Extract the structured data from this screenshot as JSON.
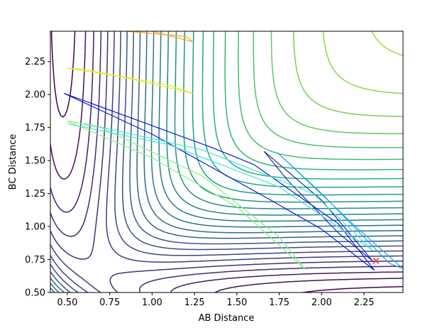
{
  "chart_data": {
    "type": "contour",
    "xlabel": "AB Distance",
    "ylabel": "BC Distance",
    "xlim": [
      0.4,
      2.48
    ],
    "ylim": [
      0.5,
      2.48
    ],
    "xticks": [
      "0.50",
      "0.75",
      "1.00",
      "1.25",
      "1.50",
      "1.75",
      "2.00",
      "2.25"
    ],
    "yticks": [
      "0.50",
      "0.75",
      "1.00",
      "1.25",
      "1.50",
      "1.75",
      "2.00",
      "2.25"
    ],
    "colormap": "viridis",
    "grid": false,
    "contour_levels": 30,
    "trajectories": [
      {
        "color": "#f5a623",
        "points": [
          [
            0.66,
            2.48
          ],
          [
            1.0,
            2.48
          ],
          [
            1.24,
            2.4
          ],
          [
            1.2,
            2.44
          ],
          [
            0.85,
            2.48
          ]
        ]
      },
      {
        "color": "#e8e81f",
        "points": [
          [
            0.5,
            2.2
          ],
          [
            0.8,
            2.14
          ],
          [
            1.24,
            2.01
          ],
          [
            1.1,
            2.07
          ],
          [
            0.6,
            2.19
          ],
          [
            0.5,
            2.2
          ]
        ]
      },
      {
        "color": "#0b1be0",
        "points": [
          [
            0.48,
            2.01
          ],
          [
            1.0,
            1.7
          ],
          [
            1.7,
            1.2
          ],
          [
            2.0,
            0.98
          ],
          [
            2.31,
            0.67
          ],
          [
            2.1,
            1.02
          ],
          [
            1.6,
            1.47
          ],
          [
            1.35,
            1.6
          ],
          [
            0.48,
            2.01
          ]
        ]
      },
      {
        "color": "#1b2ea8",
        "points": [
          [
            1.66,
            1.57
          ],
          [
            1.8,
            1.35
          ],
          [
            2.1,
            0.95
          ],
          [
            2.3,
            0.74
          ],
          [
            2.0,
            1.2
          ],
          [
            1.66,
            1.57
          ]
        ]
      },
      {
        "color": "#88f078",
        "points": [
          [
            0.5,
            1.8
          ],
          [
            1.0,
            1.52
          ],
          [
            1.5,
            1.15
          ],
          [
            1.9,
            0.68
          ],
          [
            1.75,
            0.92
          ],
          [
            1.3,
            1.38
          ],
          [
            0.7,
            1.75
          ],
          [
            0.5,
            1.8
          ]
        ]
      },
      {
        "color": "#43e6d6",
        "points": [
          [
            0.5,
            1.78
          ],
          [
            1.1,
            1.62
          ],
          [
            1.75,
            1.3
          ],
          [
            2.3,
            0.82
          ],
          [
            1.95,
            1.25
          ],
          [
            1.3,
            1.58
          ],
          [
            0.6,
            1.78
          ]
        ]
      },
      {
        "color": "#1ea8e6",
        "points": [
          [
            1.74,
            1.56
          ],
          [
            2.0,
            1.25
          ],
          [
            2.4,
            0.72
          ],
          [
            2.48,
            0.68
          ],
          [
            2.2,
            1.0
          ],
          [
            1.74,
            1.56
          ]
        ]
      }
    ],
    "marker": {
      "x": 2.32,
      "y": 0.74,
      "symbol": "x",
      "color": "#e03020"
    }
  }
}
